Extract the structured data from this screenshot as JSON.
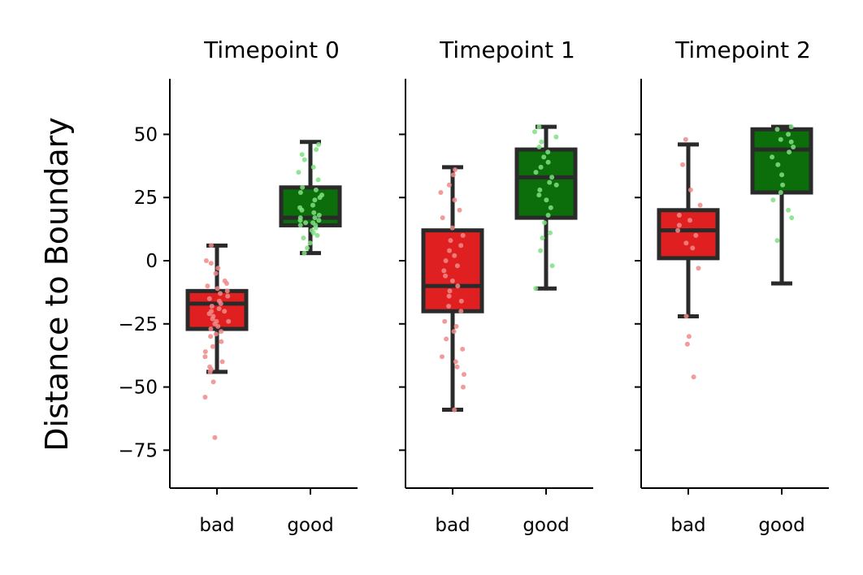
{
  "chart_data": {
    "type": "boxplot",
    "ylabel": "Distance to Boundary",
    "ylim": [
      -90,
      72
    ],
    "yticks": [
      50,
      25,
      0,
      -25,
      -50,
      -75
    ],
    "ytick_labels": [
      "50",
      "25",
      "0",
      "−25",
      "−50",
      "−75"
    ],
    "categories": [
      "bad",
      "good"
    ],
    "grid": false,
    "colors": {
      "bad_box": "#e02020",
      "good_box": "#0b6e0b",
      "bad_points": "#f08a8a",
      "good_points": "#7fe07f",
      "box_edge": "#2a2a2a"
    },
    "panels": [
      {
        "title": "Timepoint 0",
        "boxes": [
          {
            "category": "bad",
            "whisker_low": -44,
            "q1": -27,
            "median": -17,
            "q3": -12,
            "whisker_high": 6,
            "points": [
              -70,
              -54,
              -48,
              -44,
              -43,
              -42,
              -40,
              -38,
              -36,
              -34,
              -32,
              -30,
              -29,
              -28,
              -27,
              -26,
              -25,
              -24,
              -24,
              -23,
              -22,
              -21,
              -20,
              -20,
              -19,
              -18,
              -17,
              -16,
              -15,
              -14,
              -13,
              -12,
              -11,
              -10,
              -9,
              -8,
              -5,
              -3,
              -1,
              0,
              6
            ]
          },
          {
            "category": "good",
            "whisker_low": 3,
            "q1": 14,
            "median": 17,
            "q3": 29,
            "whisker_high": 47,
            "points": [
              3,
              5,
              7,
              9,
              10,
              11,
              12,
              13,
              14,
              14,
              15,
              15,
              16,
              16,
              17,
              17,
              18,
              19,
              20,
              21,
              22,
              24,
              25,
              26,
              27,
              28,
              29,
              32,
              35,
              37,
              40,
              42,
              44,
              46
            ]
          }
        ]
      },
      {
        "title": "Timepoint 1",
        "boxes": [
          {
            "category": "bad",
            "whisker_low": -59,
            "q1": -20,
            "median": -10,
            "q3": 12,
            "whisker_high": 37,
            "points": [
              -59,
              -50,
              -45,
              -42,
              -40,
              -38,
              -35,
              -31,
              -28,
              -26,
              -24,
              -20,
              -18,
              -16,
              -14,
              -12,
              -10,
              -8,
              -6,
              -4,
              -2,
              0,
              2,
              4,
              6,
              8,
              10,
              13,
              17,
              20,
              24,
              27,
              30,
              34,
              36
            ]
          },
          {
            "category": "good",
            "whisker_low": -11,
            "q1": 17,
            "median": 33,
            "q3": 44,
            "whisker_high": 53,
            "points": [
              -11,
              -2,
              4,
              9,
              11,
              15,
              18,
              21,
              24,
              26,
              28,
              30,
              31,
              33,
              35,
              37,
              39,
              41,
              43,
              45,
              47,
              49,
              51,
              53
            ]
          }
        ]
      },
      {
        "title": "Timepoint 2",
        "boxes": [
          {
            "category": "bad",
            "whisker_low": -22,
            "q1": 1,
            "median": 12,
            "q3": 20,
            "whisker_high": 46,
            "points": [
              -46,
              -33,
              -30,
              -22,
              -3,
              5,
              7,
              10,
              12,
              14,
              16,
              18,
              22,
              28,
              38,
              48
            ]
          },
          {
            "category": "good",
            "whisker_low": -9,
            "q1": 27,
            "median": 44,
            "q3": 52,
            "whisker_high": 53,
            "points": [
              8,
              17,
              20,
              24,
              27,
              30,
              34,
              38,
              41,
              43,
              45,
              47,
              48,
              50,
              52,
              53
            ]
          }
        ]
      }
    ]
  }
}
